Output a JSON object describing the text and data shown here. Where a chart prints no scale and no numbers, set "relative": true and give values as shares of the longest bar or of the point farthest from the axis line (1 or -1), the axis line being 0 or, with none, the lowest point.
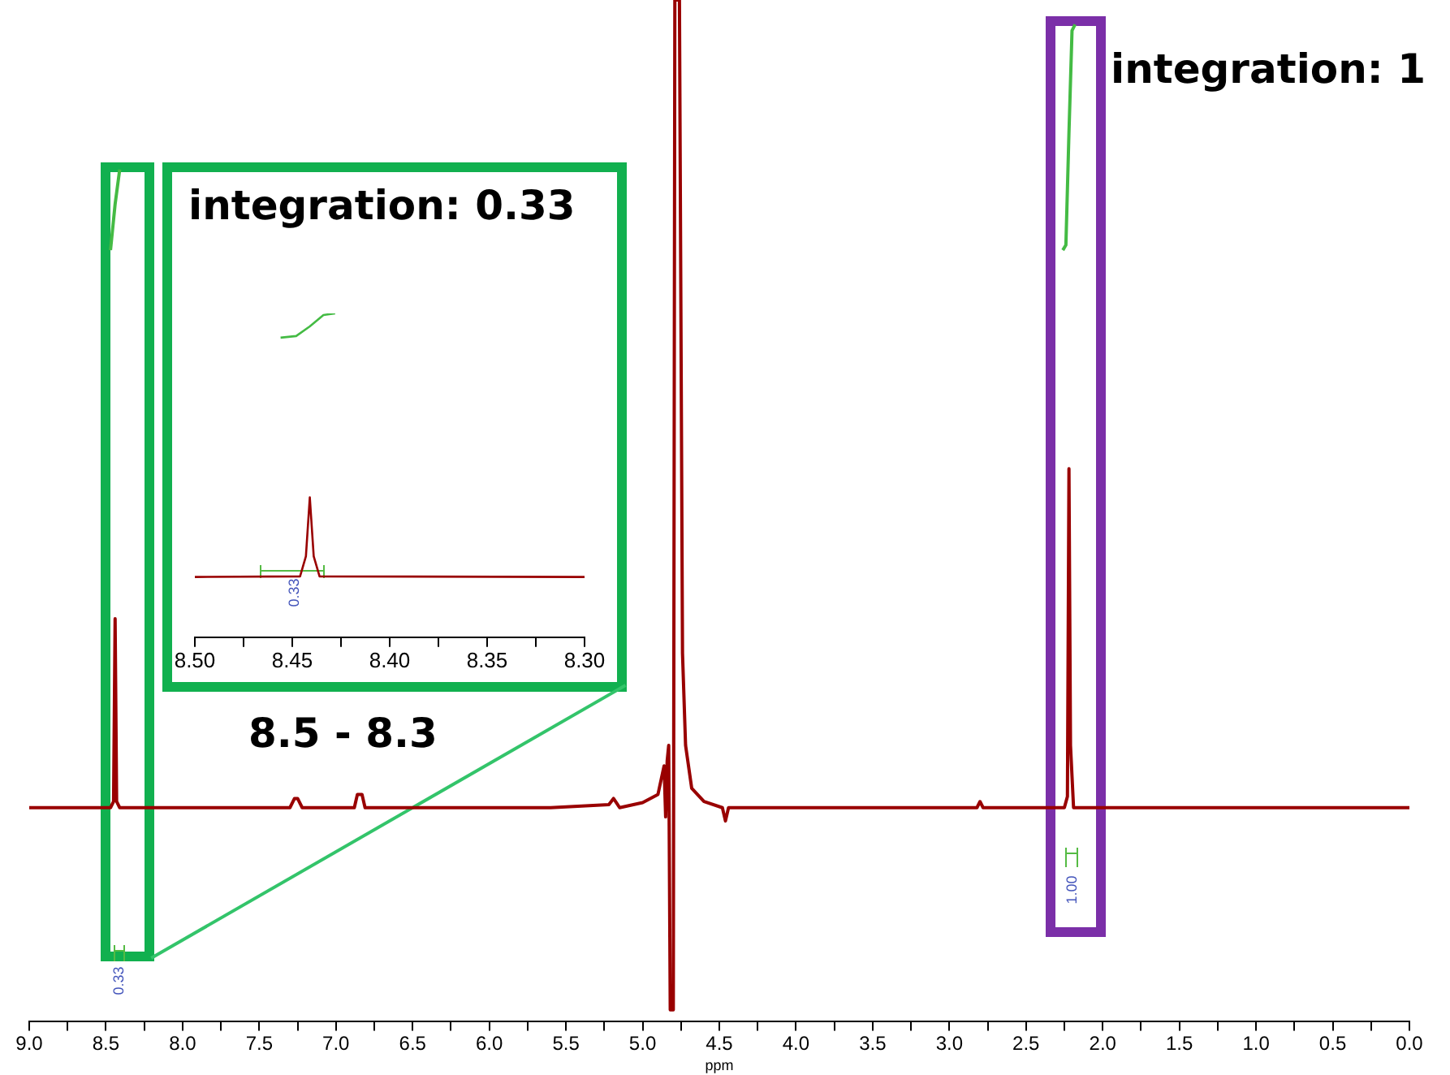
{
  "chart_data": [
    {
      "type": "line",
      "relative": true,
      "xlabel": "ppm",
      "xlim": [
        9,
        0
      ],
      "xticks": [
        {
          "value": 9,
          "label": "9.0"
        },
        {
          "value": 8.75,
          "label": null
        },
        {
          "value": 8.5,
          "label": "8.5"
        },
        {
          "value": 8.25,
          "label": null
        },
        {
          "value": 8,
          "label": "8.0"
        },
        {
          "value": 7.75,
          "label": null
        },
        {
          "value": 7.5,
          "label": "7.5"
        },
        {
          "value": 7.25,
          "label": null
        },
        {
          "value": 7,
          "label": "7.0"
        },
        {
          "value": 6.75,
          "label": null
        },
        {
          "value": 6.5,
          "label": "6.5"
        },
        {
          "value": 6.25,
          "label": null
        },
        {
          "value": 6,
          "label": "6.0"
        },
        {
          "value": 5.75,
          "label": null
        },
        {
          "value": 5.5,
          "label": "5.5"
        },
        {
          "value": 5.25,
          "label": null
        },
        {
          "value": 5,
          "label": "5.0"
        },
        {
          "value": 4.75,
          "label": null
        },
        {
          "value": 4.5,
          "label": "4.5"
        },
        {
          "value": 4.25,
          "label": null
        },
        {
          "value": 4,
          "label": "4.0"
        },
        {
          "value": 3.75,
          "label": null
        },
        {
          "value": 3.5,
          "label": "3.5"
        },
        {
          "value": 3.25,
          "label": null
        },
        {
          "value": 3,
          "label": "3.0"
        },
        {
          "value": 2.75,
          "label": null
        },
        {
          "value": 2.5,
          "label": "2.5"
        },
        {
          "value": 2.25,
          "label": null
        },
        {
          "value": 2,
          "label": "2.0"
        },
        {
          "value": 1.75,
          "label": null
        },
        {
          "value": 1.5,
          "label": "1.5"
        },
        {
          "value": 1.25,
          "label": null
        },
        {
          "value": 1,
          "label": "1.0"
        },
        {
          "value": 0.75,
          "label": null
        },
        {
          "value": 0.5,
          "label": "0.5"
        },
        {
          "value": 0.25,
          "label": null
        },
        {
          "value": 0,
          "label": "0.0"
        }
      ],
      "series": [
        {
          "color": "#990000",
          "x": [
            9.0,
            8.47,
            8.45,
            8.44,
            8.43,
            8.41,
            7.3,
            7.27,
            7.25,
            7.22,
            6.88,
            6.86,
            6.83,
            6.81,
            5.6,
            5.22,
            5.19,
            5.15,
            5.0,
            4.9,
            4.86,
            4.85,
            4.84,
            4.83,
            4.82,
            4.8,
            4.79,
            4.76,
            4.74,
            4.72,
            4.68,
            4.6,
            4.48,
            4.46,
            4.44,
            2.82,
            2.8,
            2.78,
            2.25,
            2.23,
            2.22,
            2.21,
            2.19,
            0.0
          ],
          "values": [
            0.209,
            0.209,
            0.215,
            0.394,
            0.215,
            0.209,
            0.209,
            0.218,
            0.218,
            0.209,
            0.209,
            0.222,
            0.222,
            0.209,
            0.209,
            0.212,
            0.218,
            0.209,
            0.214,
            0.222,
            0.25,
            0.2,
            0.255,
            0.27,
            0.011,
            0.011,
            1,
            1,
            0.36,
            0.27,
            0.228,
            0.215,
            0.209,
            0.196,
            0.209,
            0.209,
            0.215,
            0.209,
            0.209,
            0.22,
            0.541,
            0.27,
            0.209,
            0.209
          ]
        },
        {
          "color": "#44bb44",
          "x": [
            8.47,
            8.44,
            8.41
          ],
          "values": [
            0.755,
            0.8,
            0.834
          ]
        },
        {
          "color": "#44bb44",
          "x": [
            2.26,
            2.24,
            2.22,
            2.2,
            2.18
          ],
          "values": [
            0.755,
            0.76,
            0.87,
            0.97,
            0.976
          ]
        }
      ],
      "annotations": [
        "integration: 1",
        "0.33",
        "1.00"
      ]
    },
    {
      "type": "line",
      "relative": true,
      "xlim": [
        8.5,
        8.3
      ],
      "xticks": [
        {
          "value": 8.5,
          "label": "8.50"
        },
        {
          "value": 8.475,
          "label": null
        },
        {
          "value": 8.45,
          "label": "8.45"
        },
        {
          "value": 8.425,
          "label": null
        },
        {
          "value": 8.4,
          "label": "8.40"
        },
        {
          "value": 8.375,
          "label": null
        },
        {
          "value": 8.35,
          "label": "8.35"
        },
        {
          "value": 8.325,
          "label": null
        },
        {
          "value": 8.3,
          "label": "8.30"
        }
      ],
      "series": [
        {
          "color": "#990000",
          "x": [
            8.5,
            8.446,
            8.443,
            8.441,
            8.439,
            8.436,
            8.3
          ],
          "values": [
            0.186,
            0.188,
            0.25,
            0.432,
            0.25,
            0.188,
            0.186
          ]
        },
        {
          "color": "#44bb44",
          "x": [
            8.456,
            8.448,
            8.441,
            8.434,
            8.428
          ],
          "values": [
            0.925,
            0.93,
            0.96,
            0.995,
            1
          ]
        }
      ],
      "annotations": [
        "integration: 0.33",
        "8.5 - 8.3",
        "0.33"
      ]
    }
  ]
}
